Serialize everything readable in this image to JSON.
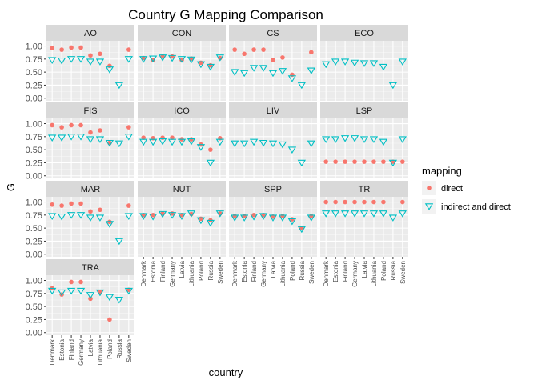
{
  "chart_data": {
    "type": "scatter",
    "title": "Country G Mapping Comparison",
    "xlabel": "country",
    "ylabel": "G",
    "ylim": [
      -0.05,
      1.1
    ],
    "yticks": [
      "0.00",
      "0.25",
      "0.50",
      "0.75",
      "1.00"
    ],
    "grid": true,
    "facet_columns": 4,
    "legend_position": "right",
    "legend": {
      "title": "mapping",
      "items": [
        {
          "label": "direct",
          "shape": "circle",
          "color": "#F8766D"
        },
        {
          "label": "indirect and direct",
          "shape": "triangle-down",
          "color": "#00BFC4"
        }
      ]
    },
    "countries": [
      "Denmark",
      "Estonia",
      "Finland",
      "Germany",
      "Latvia",
      "Lithuania",
      "Poland",
      "Russia",
      "Sweden"
    ],
    "panels": [
      {
        "name": "AO",
        "series": [
          {
            "name": "direct",
            "values": [
              0.96,
              0.93,
              0.97,
              0.97,
              0.82,
              0.85,
              0.62,
              null,
              0.93
            ]
          },
          {
            "name": "indirect and direct",
            "values": [
              0.73,
              0.72,
              0.75,
              0.75,
              0.7,
              0.7,
              0.55,
              0.25,
              0.75
            ]
          }
        ]
      },
      {
        "name": "CON",
        "series": [
          {
            "name": "direct",
            "values": [
              0.77,
              0.73,
              0.8,
              0.8,
              0.73,
              0.76,
              0.68,
              0.63,
              0.77
            ]
          },
          {
            "name": "indirect and direct",
            "values": [
              0.75,
              0.76,
              0.78,
              0.77,
              0.75,
              0.74,
              0.65,
              0.6,
              0.78
            ]
          }
        ]
      },
      {
        "name": "CS",
        "series": [
          {
            "name": "direct",
            "values": [
              0.93,
              0.85,
              0.93,
              0.93,
              0.73,
              0.78,
              0.45,
              null,
              0.88
            ]
          },
          {
            "name": "indirect and direct",
            "values": [
              0.5,
              0.48,
              0.58,
              0.58,
              0.48,
              0.52,
              0.38,
              0.25,
              0.53
            ]
          }
        ]
      },
      {
        "name": "ECO",
        "series": [
          {
            "name": "direct",
            "values": [
              null,
              null,
              null,
              null,
              null,
              null,
              null,
              null,
              null
            ]
          },
          {
            "name": "indirect and direct",
            "values": [
              0.65,
              0.7,
              0.7,
              0.68,
              0.67,
              0.67,
              0.6,
              0.25,
              0.7
            ]
          }
        ]
      },
      {
        "name": "FIS",
        "series": [
          {
            "name": "direct",
            "values": [
              0.97,
              0.93,
              0.97,
              0.97,
              0.83,
              0.87,
              0.63,
              null,
              0.93
            ]
          },
          {
            "name": "indirect and direct",
            "values": [
              0.73,
              0.73,
              0.75,
              0.75,
              0.7,
              0.7,
              0.63,
              0.62,
              0.75
            ]
          }
        ]
      },
      {
        "name": "ICO",
        "series": [
          {
            "name": "direct",
            "values": [
              0.73,
              0.72,
              0.73,
              0.73,
              0.7,
              0.7,
              0.6,
              0.5,
              0.72
            ]
          },
          {
            "name": "indirect and direct",
            "values": [
              0.65,
              0.65,
              0.66,
              0.65,
              0.65,
              0.66,
              0.55,
              0.25,
              0.65
            ]
          }
        ]
      },
      {
        "name": "LIV",
        "series": [
          {
            "name": "direct",
            "values": [
              null,
              null,
              null,
              null,
              null,
              null,
              null,
              null,
              null
            ]
          },
          {
            "name": "indirect and direct",
            "values": [
              0.62,
              0.62,
              0.65,
              0.63,
              0.62,
              0.6,
              0.5,
              0.25,
              0.62
            ]
          }
        ]
      },
      {
        "name": "LSP",
        "series": [
          {
            "name": "direct",
            "values": [
              0.27,
              0.27,
              0.27,
              0.27,
              0.27,
              0.27,
              0.27,
              0.27,
              0.27
            ]
          },
          {
            "name": "indirect and direct",
            "values": [
              0.7,
              0.7,
              0.72,
              0.72,
              0.7,
              0.7,
              0.65,
              0.25,
              0.7
            ]
          }
        ]
      },
      {
        "name": "MAR",
        "series": [
          {
            "name": "direct",
            "values": [
              0.95,
              0.93,
              0.97,
              0.97,
              0.82,
              0.85,
              0.62,
              null,
              0.93
            ]
          },
          {
            "name": "indirect and direct",
            "values": [
              0.73,
              0.72,
              0.75,
              0.75,
              0.7,
              0.7,
              0.58,
              0.25,
              0.73
            ]
          }
        ]
      },
      {
        "name": "NUT",
        "series": [
          {
            "name": "direct",
            "values": [
              0.75,
              0.75,
              0.78,
              0.78,
              0.75,
              0.77,
              0.68,
              0.65,
              0.78
            ]
          },
          {
            "name": "indirect and direct",
            "values": [
              0.73,
              0.72,
              0.77,
              0.75,
              0.73,
              0.78,
              0.65,
              0.6,
              0.78
            ]
          }
        ]
      },
      {
        "name": "SPP",
        "series": [
          {
            "name": "direct",
            "values": [
              0.73,
              0.73,
              0.75,
              0.75,
              0.72,
              0.73,
              0.67,
              0.5,
              0.73
            ]
          },
          {
            "name": "indirect and direct",
            "values": [
              0.7,
              0.7,
              0.72,
              0.73,
              0.7,
              0.7,
              0.63,
              0.48,
              0.7
            ]
          }
        ]
      },
      {
        "name": "TR",
        "series": [
          {
            "name": "direct",
            "values": [
              1.0,
              1.0,
              1.0,
              1.0,
              1.0,
              1.0,
              1.0,
              null,
              1.0
            ]
          },
          {
            "name": "indirect and direct",
            "values": [
              0.78,
              0.78,
              0.78,
              0.78,
              0.78,
              0.78,
              0.78,
              0.7,
              0.78
            ]
          }
        ]
      },
      {
        "name": "TRA",
        "series": [
          {
            "name": "direct",
            "values": [
              0.85,
              0.73,
              0.97,
              0.97,
              0.65,
              0.78,
              0.25,
              null,
              0.82
            ]
          },
          {
            "name": "indirect and direct",
            "values": [
              0.8,
              0.77,
              0.8,
              0.8,
              0.72,
              0.77,
              0.68,
              0.63,
              0.8
            ]
          }
        ]
      }
    ]
  }
}
